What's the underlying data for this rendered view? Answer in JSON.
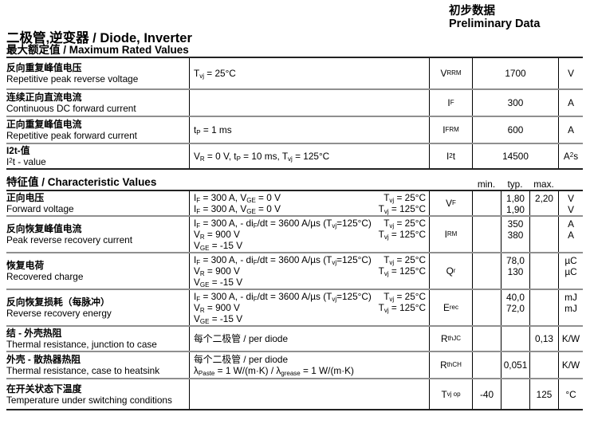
{
  "header": {
    "preliminary_cn": "初步数据",
    "preliminary_en": "Preliminary Data",
    "title": "二极管,逆变器 / Diode, Inverter"
  },
  "max_rated_values": {
    "section_title": "最大额定值 / Maximum Rated Values",
    "rows": [
      {
        "name_cn": "反向重复峰值电压",
        "name_en": "Repetitive peak reverse voltage",
        "conditions": [
          "T~vj~ = 25°C"
        ],
        "symbol": "V~RRM~",
        "value": "1700",
        "unit": "V"
      },
      {
        "name_cn": "连续正向直流电流",
        "name_en": "Continuous DC forward current",
        "conditions": [],
        "symbol": "I~F~",
        "value": "300",
        "unit": "A"
      },
      {
        "name_cn": "正向重复峰值电流",
        "name_en": "Repetitive peak forward current",
        "conditions": [
          "t~P~ = 1 ms"
        ],
        "symbol": "I~FRM~",
        "value": "600",
        "unit": "A"
      },
      {
        "name_cn": "I2t-值",
        "name_en": "I^2^t - value",
        "conditions": [
          "V~R~ = 0 V, t~P~ = 10 ms, T~vj~ = 125°C"
        ],
        "symbol": "I^2^t",
        "value": "14500",
        "unit": "A^2^s"
      }
    ]
  },
  "characteristic_values": {
    "section_title": "特征值 / Characteristic Values",
    "col_headers": [
      "min.",
      "typ.",
      "max."
    ],
    "rows": [
      {
        "name_cn": "正向电压",
        "name_en": "Forward voltage",
        "cond_left": [
          "I~F~ = 300 A, V~GE~ = 0 V",
          "I~F~ = 300 A, V~GE~ = 0 V"
        ],
        "cond_right": [
          "T~vj~ = 25°C",
          "T~vj~ = 125°C"
        ],
        "symbol": "V~F~",
        "min": [],
        "typ": [
          "1,80",
          "1,90"
        ],
        "max": [
          "2,20"
        ],
        "unit": [
          "V",
          "V"
        ]
      },
      {
        "name_cn": "反向恢复峰值电流",
        "name_en": "Peak reverse recovery current",
        "cond_left": [
          "I~F~ = 300 A, - di~F~/dt = 3600 A/µs (T~vj~=125°C)",
          "V~R~ = 900 V",
          "V~GE~ = -15 V"
        ],
        "cond_right": [
          "T~vj~ = 25°C",
          "T~vj~ = 125°C"
        ],
        "symbol": "I~RM~",
        "min": [],
        "typ": [
          "350",
          "380"
        ],
        "max": [],
        "unit": [
          "A",
          "A"
        ]
      },
      {
        "name_cn": "恢复电荷",
        "name_en": "Recovered charge",
        "cond_left": [
          "I~F~ = 300 A, - di~F~/dt = 3600 A/µs (T~vj~=125°C)",
          "V~R~ = 900 V",
          "V~GE~ = -15 V"
        ],
        "cond_right": [
          "T~vj~ = 25°C",
          "T~vj~ = 125°C"
        ],
        "symbol": "Q~r~",
        "min": [],
        "typ": [
          "78,0",
          "130"
        ],
        "max": [],
        "unit": [
          "µC",
          "µC"
        ]
      },
      {
        "name_cn": "反向恢复损耗（每脉冲）",
        "name_en": "Reverse recovery energy",
        "cond_left": [
          "I~F~ = 300 A, - di~F~/dt = 3600 A/µs (T~vj~=125°C)",
          "V~R~ = 900 V",
          "V~GE~ = -15 V"
        ],
        "cond_right": [
          "T~vj~ = 25°C",
          "T~vj~ = 125°C"
        ],
        "symbol": "E~rec~",
        "min": [],
        "typ": [
          "40,0",
          "72,0"
        ],
        "max": [],
        "unit": [
          "mJ",
          "mJ"
        ]
      },
      {
        "name_cn": "结 - 外壳热阻",
        "name_en": "Thermal resistance, junction to case",
        "cond_left": [
          "每个二极管 / per diode"
        ],
        "cond_right": [],
        "symbol": "R~thJC~",
        "min": [],
        "typ": [],
        "max": [
          "0,13"
        ],
        "unit": [
          "K/W"
        ]
      },
      {
        "name_cn": "外壳 - 散热器热阻",
        "name_en": "Thermal resistance, case to heatsink",
        "cond_left": [
          "每个二极管 / per diode",
          "λ~Paste~ = 1 W/(m·K)   /   λ~grease~ = 1 W/(m·K)"
        ],
        "cond_right": [],
        "symbol": "R~thCH~",
        "min": [],
        "typ": [
          "0,051"
        ],
        "max": [],
        "unit": [
          "K/W"
        ]
      },
      {
        "name_cn": "在开关状态下温度",
        "name_en": "Temperature under switching conditions",
        "cond_left": [],
        "cond_right": [],
        "symbol": "T~vj op~",
        "min": [
          "-40"
        ],
        "typ": [],
        "max": [
          "125"
        ],
        "unit": [
          "°C"
        ]
      }
    ]
  }
}
